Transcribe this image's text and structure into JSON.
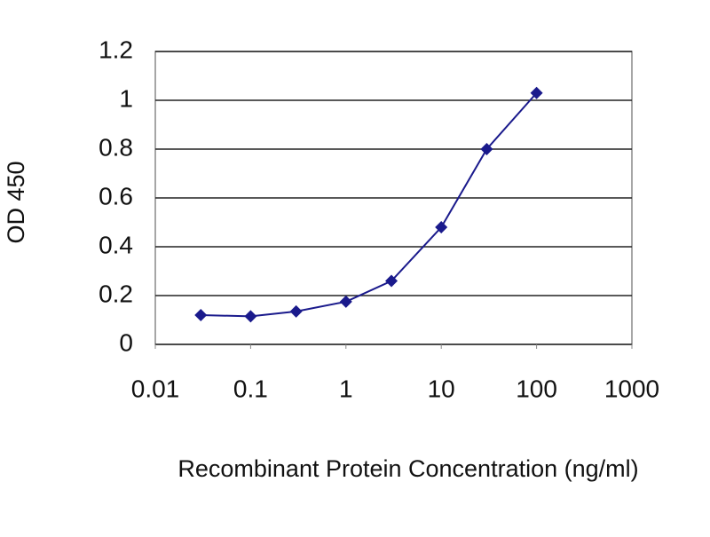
{
  "chart_data": {
    "type": "line",
    "x_label": "Recombinant Protein Concentration (ng/ml)",
    "y_label": "OD 450",
    "x": [
      0.03,
      0.1,
      0.3,
      1,
      3,
      10,
      30,
      100
    ],
    "values": [
      0.12,
      0.115,
      0.135,
      0.175,
      0.26,
      0.48,
      0.8,
      1.03
    ],
    "color": "#1a1a8c",
    "xlim": [
      0.01,
      1000
    ],
    "xticks": [
      0.01,
      0.1,
      1,
      10,
      100,
      1000
    ],
    "xscale": "log",
    "ylim": [
      0,
      1.2
    ],
    "yticks": [
      0,
      0.2,
      0.4,
      0.6,
      0.8,
      1,
      1.2
    ],
    "grid": true
  }
}
